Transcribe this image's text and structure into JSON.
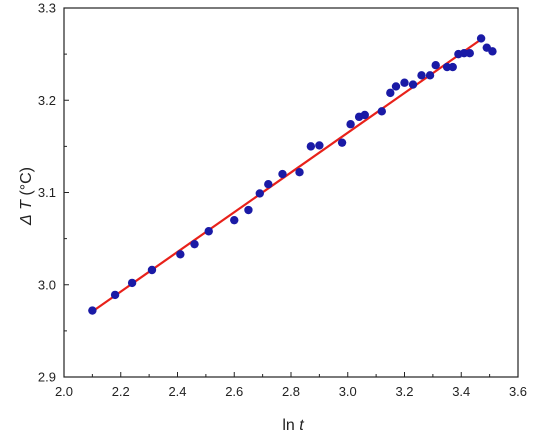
{
  "chart_data": {
    "type": "scatter",
    "title": "",
    "xlabel": {
      "text": "ln",
      "var": "t",
      "unit": ""
    },
    "ylabel": {
      "prefix": "Δ",
      "var": "T",
      "unit": "(°C)"
    },
    "xlim": [
      2.0,
      3.6
    ],
    "ylim": [
      2.9,
      3.3
    ],
    "x_ticks": [
      2.0,
      2.2,
      2.4,
      2.6,
      2.8,
      3.0,
      3.2,
      3.4,
      3.6
    ],
    "x_tick_labels": [
      "2.0",
      "2.2",
      "2.4",
      "2.6",
      "2.8",
      "3.0",
      "3.2",
      "3.4",
      "3.6"
    ],
    "y_ticks": [
      2.9,
      3.0,
      3.1,
      3.2,
      3.3
    ],
    "y_tick_labels": [
      "2.9",
      "3.0",
      "3.1",
      "3.2",
      "3.3"
    ],
    "grid": false,
    "legend": "none",
    "colors": {
      "points": "#1a1aa6",
      "fit_line": "#e8211a",
      "axes": "#222222"
    },
    "series": [
      {
        "kind": "points",
        "x": [
          2.1,
          2.18,
          2.24,
          2.31,
          2.41,
          2.46,
          2.51,
          2.6,
          2.65,
          2.69,
          2.72,
          2.77,
          2.83,
          2.87,
          2.9,
          2.98,
          3.01,
          3.04,
          3.06,
          3.12,
          3.15,
          3.17,
          3.2,
          3.23,
          3.26,
          3.29,
          3.31,
          3.35,
          3.37,
          3.39,
          3.41,
          3.43,
          3.47,
          3.49,
          3.51
        ],
        "y": [
          2.972,
          2.989,
          3.002,
          3.016,
          3.033,
          3.044,
          3.058,
          3.07,
          3.081,
          3.099,
          3.109,
          3.12,
          3.122,
          3.15,
          3.151,
          3.154,
          3.174,
          3.182,
          3.184,
          3.188,
          3.208,
          3.215,
          3.219,
          3.217,
          3.227,
          3.227,
          3.238,
          3.236,
          3.236,
          3.25,
          3.251,
          3.251,
          3.267,
          3.257,
          3.253
        ]
      },
      {
        "kind": "line",
        "x": [
          2.1,
          3.47
        ],
        "y": [
          2.971,
          3.266
        ]
      }
    ]
  }
}
